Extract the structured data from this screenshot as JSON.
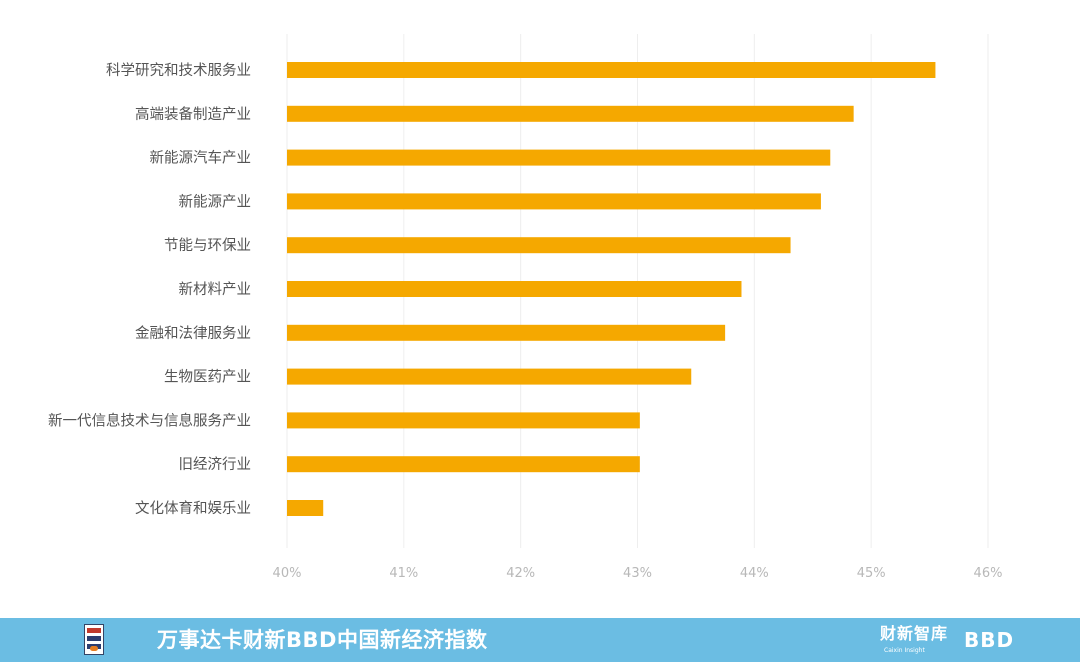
{
  "chart_data": {
    "type": "bar",
    "orientation": "horizontal",
    "categories": [
      "科学研究和技术服务业",
      "高端装备制造产业",
      "新能源汽车产业",
      "新能源产业",
      "节能与环保业",
      "新材料产业",
      "金融和法律服务业",
      "生物医药产业",
      "新一代信息技术与信息服务产业",
      "旧经济行业",
      "文化体育和娱乐业"
    ],
    "values": [
      45.55,
      44.85,
      44.65,
      44.57,
      44.31,
      43.89,
      43.75,
      43.46,
      43.02,
      43.02,
      40.31
    ],
    "xlim": [
      40,
      46
    ],
    "ticks": [
      40,
      41,
      42,
      43,
      44,
      45,
      46
    ],
    "tick_labels": [
      "40%",
      "41%",
      "42%",
      "43%",
      "44%",
      "45%",
      "46%"
    ],
    "title": "",
    "xlabel": "",
    "ylabel": "",
    "grid": "vertical",
    "bar_color": "#f5a800"
  },
  "footer": {
    "title": "万事达卡财新BBD中国新经济指数",
    "logo_caixin": "财新智库",
    "logo_caixin_sub": "Caixin Insight",
    "logo_bbd": "BBD",
    "background": "#6bbde3"
  }
}
